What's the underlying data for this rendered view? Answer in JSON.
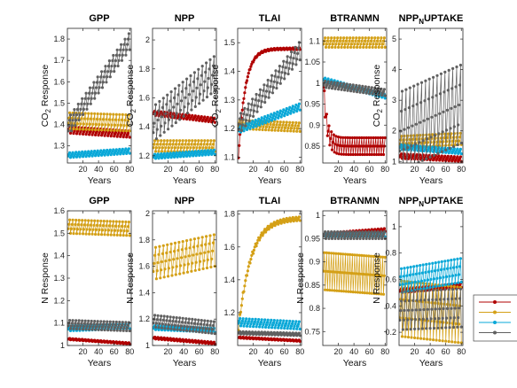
{
  "figure": {
    "legend_colors": [
      "#b00000",
      "#d4a017",
      "#0aa8d8",
      "#606060"
    ]
  },
  "chart_data": [
    {
      "type": "line",
      "title": "GPP",
      "title_sub": "",
      "title_post": "",
      "xlabel": "Years",
      "ylabel": "CO2 Response",
      "ylabel_sub": "2",
      "xlim": [
        0,
        82
      ],
      "ylim": [
        1.22,
        1.85
      ],
      "xticks": [
        20,
        40,
        60,
        80
      ],
      "yticks": [
        1.3,
        1.4,
        1.5,
        1.6,
        1.7,
        1.8
      ],
      "series": [
        {
          "color": "#b00000",
          "start": 1.38,
          "end": 1.36,
          "amp": 0.02,
          "period": 4,
          "shape": "lin"
        },
        {
          "color": "#d4a017",
          "start": 1.43,
          "end": 1.42,
          "amp": 0.05,
          "period": 4,
          "shape": "lin"
        },
        {
          "color": "#0aa8d8",
          "start": 1.26,
          "end": 1.28,
          "amp": 0.015,
          "period": 4,
          "shape": "lin"
        },
        {
          "color": "#606060",
          "start": 1.4,
          "end": 1.8,
          "amp": 0.05,
          "period": 5,
          "shape": "lin"
        }
      ]
    },
    {
      "type": "line",
      "title": "NPP",
      "title_sub": "",
      "title_post": "",
      "xlabel": "Years",
      "ylabel": "CO2 Response",
      "ylabel_sub": "2",
      "xlim": [
        0,
        82
      ],
      "ylim": [
        1.15,
        2.08
      ],
      "xticks": [
        20,
        40,
        60,
        80
      ],
      "yticks": [
        1.2,
        1.4,
        1.6,
        1.8,
        2
      ],
      "series": [
        {
          "color": "#b00000",
          "start": 1.5,
          "end": 1.45,
          "amp": 0.02,
          "period": 4,
          "shape": "lin"
        },
        {
          "color": "#d4a017",
          "start": 1.28,
          "end": 1.28,
          "amp": 0.05,
          "period": 4,
          "shape": "lin"
        },
        {
          "color": "#0aa8d8",
          "start": 1.2,
          "end": 1.23,
          "amp": 0.02,
          "period": 4,
          "shape": "lin"
        },
        {
          "color": "#606060",
          "start": 1.45,
          "end": 1.8,
          "amp": 0.15,
          "period": 5,
          "shape": "lin"
        }
      ]
    },
    {
      "type": "line",
      "title": "TLAI",
      "title_sub": "",
      "title_post": "",
      "xlabel": "Years",
      "ylabel": "CO2 Response",
      "ylabel_sub": "2",
      "xlim": [
        0,
        82
      ],
      "ylim": [
        1.08,
        1.55
      ],
      "xticks": [
        20,
        40,
        60,
        80
      ],
      "yticks": [
        1.1,
        1.2,
        1.3,
        1.4,
        1.5
      ],
      "series": [
        {
          "color": "#b00000",
          "start": 1.1,
          "end": 1.48,
          "amp": 0.004,
          "period": 4,
          "shape": "sat",
          "k": 9
        },
        {
          "color": "#d4a017",
          "start": 1.22,
          "end": 1.21,
          "amp": 0.02,
          "period": 4,
          "shape": "lin"
        },
        {
          "color": "#0aa8d8",
          "start": 1.2,
          "end": 1.28,
          "amp": 0.015,
          "period": 4,
          "shape": "lin"
        },
        {
          "color": "#606060",
          "start": 1.22,
          "end": 1.48,
          "amp": 0.04,
          "period": 5,
          "shape": "lin"
        }
      ]
    },
    {
      "type": "line",
      "title": "BTRANMN",
      "title_sub": "",
      "title_post": "",
      "xlabel": "Years",
      "ylabel": "",
      "ylabel_sub": "",
      "xlim": [
        0,
        82
      ],
      "ylim": [
        0.81,
        1.13
      ],
      "xticks": [
        20,
        40,
        60,
        80
      ],
      "yticks": [
        0.85,
        0.9,
        0.95,
        1,
        1.05,
        1.1
      ],
      "series": [
        {
          "color": "#b00000",
          "start": 1.0,
          "end": 0.86,
          "amp": 0.03,
          "period": 3,
          "shape": "decay",
          "k": 18
        },
        {
          "color": "#d4a017",
          "start": 1.1,
          "end": 1.1,
          "amp": 0.015,
          "period": 4,
          "shape": "lin"
        },
        {
          "color": "#0aa8d8",
          "start": 1.01,
          "end": 0.97,
          "amp": 0.006,
          "period": 4,
          "shape": "lin"
        },
        {
          "color": "#606060",
          "start": 1.0,
          "end": 0.98,
          "amp": 0.01,
          "period": 4,
          "shape": "lin"
        }
      ]
    },
    {
      "type": "line",
      "title": "NPP",
      "title_sub": "N",
      "title_post": "UPTAKE",
      "xlabel": "Years",
      "ylabel": "CO2 Response",
      "ylabel_sub": "2",
      "xlim": [
        0,
        82
      ],
      "ylim": [
        0.95,
        5.35
      ],
      "xticks": [
        20,
        40,
        60,
        80
      ],
      "yticks": [
        1,
        2,
        3,
        4,
        5
      ],
      "series": [
        {
          "color": "#b00000",
          "start": 1.2,
          "end": 1.1,
          "amp": 0.1,
          "period": 4,
          "shape": "lin"
        },
        {
          "color": "#d4a017",
          "start": 1.7,
          "end": 1.8,
          "amp": 0.25,
          "period": 4,
          "shape": "lin"
        },
        {
          "color": "#0aa8d8",
          "start": 1.5,
          "end": 1.35,
          "amp": 0.1,
          "period": 4,
          "shape": "lin"
        },
        {
          "color": "#606060",
          "start": 2.3,
          "end": 3.2,
          "amp": 1.6,
          "period": 5,
          "shape": "lin"
        }
      ]
    },
    {
      "type": "line",
      "title": "GPP",
      "title_sub": "",
      "title_post": "",
      "xlabel": "Years",
      "ylabel": "N Response",
      "ylabel_sub": "",
      "xlim": [
        0,
        82
      ],
      "ylim": [
        1.0,
        1.6
      ],
      "xticks": [
        20,
        40,
        60,
        80
      ],
      "yticks": [
        1,
        1.1,
        1.2,
        1.3,
        1.4,
        1.5,
        1.6
      ],
      "series": [
        {
          "color": "#b00000",
          "start": 1.03,
          "end": 1.01,
          "amp": 0.004,
          "period": 4,
          "shape": "lin"
        },
        {
          "color": "#d4a017",
          "start": 1.54,
          "end": 1.53,
          "amp": 0.04,
          "period": 4,
          "shape": "lin"
        },
        {
          "color": "#0aa8d8",
          "start": 1.08,
          "end": 1.09,
          "amp": 0.015,
          "period": 4,
          "shape": "lin"
        },
        {
          "color": "#606060",
          "start": 1.1,
          "end": 1.09,
          "amp": 0.025,
          "period": 4,
          "shape": "lin"
        }
      ]
    },
    {
      "type": "line",
      "title": "NPP",
      "title_sub": "",
      "title_post": "",
      "xlabel": "Years",
      "ylabel": "N Response",
      "ylabel_sub": "",
      "xlim": [
        0,
        82
      ],
      "ylim": [
        1.0,
        2.02
      ],
      "xticks": [
        20,
        40,
        60,
        80
      ],
      "yticks": [
        1,
        1.2,
        1.4,
        1.6,
        1.8,
        2
      ],
      "series": [
        {
          "color": "#b00000",
          "start": 1.06,
          "end": 1.02,
          "amp": 0.01,
          "period": 4,
          "shape": "lin"
        },
        {
          "color": "#d4a017",
          "start": 1.65,
          "end": 1.75,
          "amp": 0.15,
          "period": 5,
          "shape": "lin"
        },
        {
          "color": "#0aa8d8",
          "start": 1.14,
          "end": 1.12,
          "amp": 0.02,
          "period": 4,
          "shape": "lin"
        },
        {
          "color": "#606060",
          "start": 1.2,
          "end": 1.15,
          "amp": 0.06,
          "period": 4,
          "shape": "lin"
        }
      ]
    },
    {
      "type": "line",
      "title": "TLAI",
      "title_sub": "",
      "title_post": "",
      "xlabel": "Years",
      "ylabel": "",
      "ylabel_sub": "",
      "xlim": [
        0,
        82
      ],
      "ylim": [
        1.0,
        1.82
      ],
      "xticks": [
        20,
        40,
        60,
        80
      ],
      "yticks": [
        1.2,
        1.4,
        1.6,
        1.8
      ],
      "series": [
        {
          "color": "#b00000",
          "start": 1.05,
          "end": 1.03,
          "amp": 0.005,
          "period": 4,
          "shape": "lin"
        },
        {
          "color": "#d4a017",
          "start": 1.1,
          "end": 1.78,
          "amp": 0.015,
          "period": 4,
          "shape": "sat",
          "k": 5
        },
        {
          "color": "#0aa8d8",
          "start": 1.15,
          "end": 1.13,
          "amp": 0.03,
          "period": 4,
          "shape": "lin"
        },
        {
          "color": "#606060",
          "start": 1.08,
          "end": 1.07,
          "amp": 0.01,
          "period": 4,
          "shape": "lin"
        }
      ]
    },
    {
      "type": "line",
      "title": "BTRANMN",
      "title_sub": "",
      "title_post": "",
      "xlabel": "Years",
      "ylabel": "N Response",
      "ylabel_sub": "",
      "xlim": [
        0,
        82
      ],
      "ylim": [
        0.72,
        1.01
      ],
      "xticks": [
        20,
        40,
        60,
        80
      ],
      "yticks": [
        0.75,
        0.8,
        0.85,
        0.9,
        0.95,
        1
      ],
      "series": [
        {
          "color": "#b00000",
          "start": 0.96,
          "end": 0.97,
          "amp": 0.004,
          "period": 4,
          "shape": "lin"
        },
        {
          "color": "#d4a017",
          "start": 0.9,
          "end": 0.89,
          "amp": 0.06,
          "period": 3,
          "shape": "lin"
        },
        {
          "color": "#0aa8d8",
          "start": 0.96,
          "end": 0.96,
          "amp": 0.006,
          "period": 4,
          "shape": "lin"
        },
        {
          "color": "#606060",
          "start": 0.96,
          "end": 0.96,
          "amp": 0.01,
          "period": 4,
          "shape": "lin"
        }
      ]
    },
    {
      "type": "line",
      "title": "NPP",
      "title_sub": "N",
      "title_post": "UPTAKE",
      "xlabel": "Years",
      "ylabel": "N Response",
      "ylabel_sub": "",
      "xlim": [
        0,
        82
      ],
      "ylim": [
        0.1,
        1.12
      ],
      "xticks": [
        20,
        40,
        60,
        80
      ],
      "yticks": [
        0.2,
        0.4,
        0.6,
        0.8,
        1
      ],
      "series": [
        {
          "color": "#b00000",
          "start": 0.52,
          "end": 0.56,
          "amp": 0.02,
          "period": 4,
          "shape": "lin"
        },
        {
          "color": "#d4a017",
          "start": 0.45,
          "end": 0.4,
          "amp": 0.28,
          "period": 4,
          "shape": "lin"
        },
        {
          "color": "#0aa8d8",
          "start": 0.62,
          "end": 0.7,
          "amp": 0.12,
          "period": 4,
          "shape": "lin"
        },
        {
          "color": "#606060",
          "start": 0.4,
          "end": 0.42,
          "amp": 0.18,
          "period": 5,
          "shape": "lin"
        }
      ]
    }
  ]
}
